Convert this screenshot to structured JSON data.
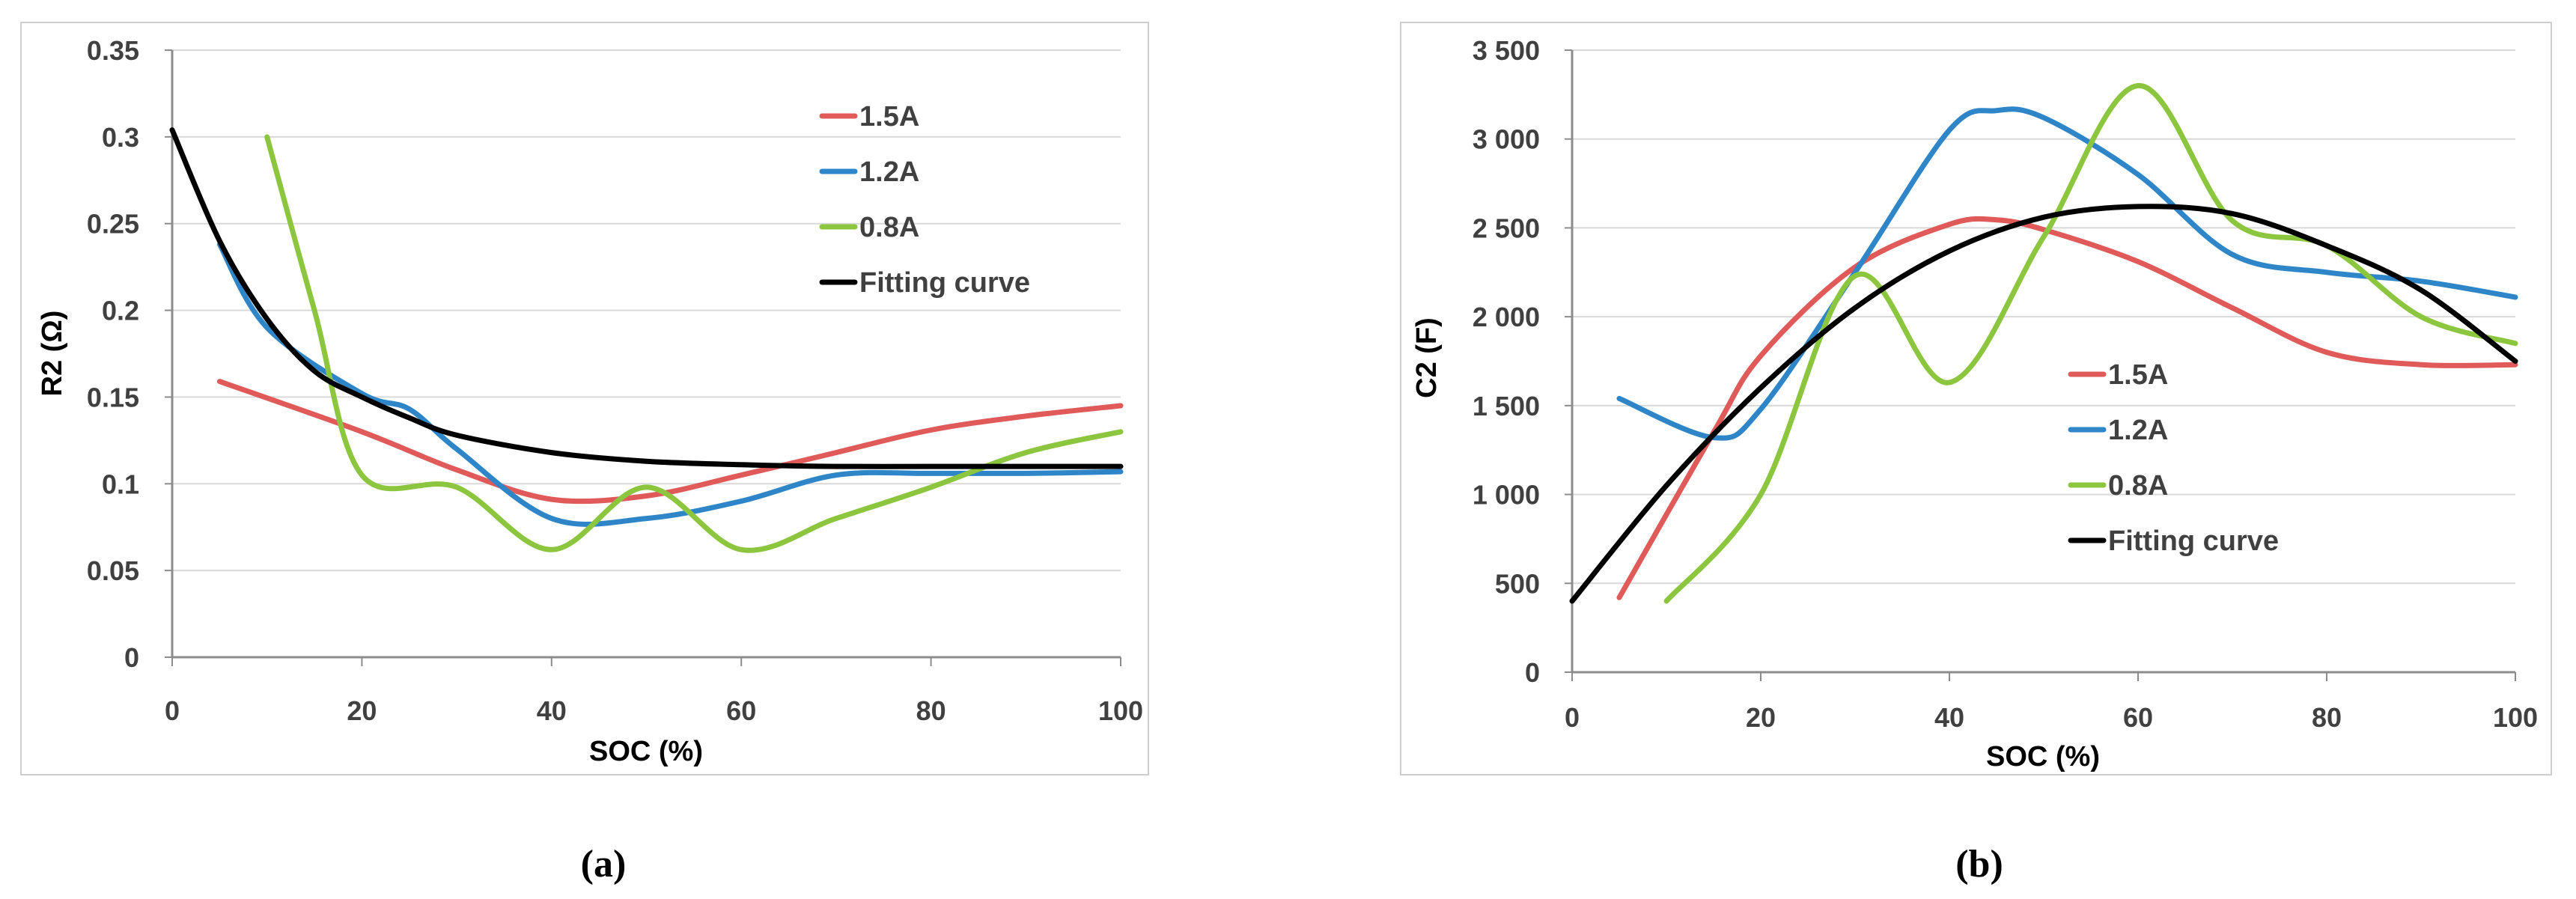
{
  "chart_data": [
    {
      "type": "line",
      "panel_label": "(a)",
      "xlabel": "SOC (%)",
      "ylabel": "R2 (Ω)",
      "xlim": [
        0,
        100
      ],
      "ylim": [
        0,
        0.35
      ],
      "x_ticks": [
        0,
        20,
        40,
        60,
        80,
        100
      ],
      "x_tick_labels": [
        "0",
        "20",
        "40",
        "60",
        "80",
        "100"
      ],
      "y_ticks": [
        0,
        0.05,
        0.1,
        0.15,
        0.2,
        0.25,
        0.3,
        0.35
      ],
      "y_tick_labels": [
        "0",
        "0.05",
        "0.1",
        "0.15",
        "0.2",
        "0.25",
        "0.3",
        "0.35"
      ],
      "grid": "horizontal",
      "legend_position": "top-right",
      "series": [
        {
          "name": "1.5A",
          "color": "#e05a5a",
          "x": [
            5,
            20,
            30,
            40,
            50,
            60,
            70,
            80,
            90,
            100
          ],
          "y": [
            0.159,
            0.13,
            0.108,
            0.091,
            0.093,
            0.105,
            0.118,
            0.131,
            0.139,
            0.145
          ]
        },
        {
          "name": "1.2A",
          "color": "#2e86c8",
          "x": [
            5,
            10,
            20,
            25,
            30,
            40,
            50,
            60,
            70,
            80,
            90,
            100
          ],
          "y": [
            0.238,
            0.19,
            0.152,
            0.143,
            0.12,
            0.08,
            0.08,
            0.09,
            0.105,
            0.106,
            0.106,
            0.107
          ]
        },
        {
          "name": "0.8A",
          "color": "#8cc63f",
          "x": [
            10,
            15,
            20,
            30,
            40,
            50,
            60,
            70,
            80,
            90,
            100
          ],
          "y": [
            0.3,
            0.2,
            0.105,
            0.098,
            0.062,
            0.098,
            0.062,
            0.08,
            0.098,
            0.118,
            0.13
          ]
        },
        {
          "name": "Fitting curve",
          "color": "#000000",
          "x": [
            0,
            5,
            10,
            15,
            20,
            25,
            30,
            40,
            50,
            60,
            70,
            80,
            90,
            100
          ],
          "y": [
            0.304,
            0.24,
            0.195,
            0.165,
            0.15,
            0.138,
            0.128,
            0.118,
            0.113,
            0.111,
            0.11,
            0.11,
            0.11,
            0.11
          ]
        }
      ]
    },
    {
      "type": "line",
      "panel_label": "(b)",
      "xlabel": "SOC (%)",
      "ylabel": "C2 (F)",
      "xlim": [
        0,
        100
      ],
      "ylim": [
        0,
        3500
      ],
      "x_ticks": [
        0,
        20,
        40,
        60,
        80,
        100
      ],
      "x_tick_labels": [
        "0",
        "20",
        "40",
        "60",
        "80",
        "100"
      ],
      "y_ticks": [
        0,
        500,
        1000,
        1500,
        2000,
        2500,
        3000,
        3500
      ],
      "y_tick_labels": [
        "0",
        "500",
        "1 000",
        "1 500",
        "2 000",
        "2 500",
        "3 000",
        "3 500"
      ],
      "grid": "horizontal",
      "legend_position": "center",
      "series": [
        {
          "name": "1.5A",
          "color": "#e05a5a",
          "x": [
            5,
            15,
            20,
            30,
            40,
            45,
            50,
            60,
            70,
            80,
            90,
            100
          ],
          "y": [
            420,
            1350,
            1780,
            2280,
            2520,
            2545,
            2490,
            2310,
            2050,
            1800,
            1730,
            1730
          ]
        },
        {
          "name": "1.2A",
          "color": "#2e86c8",
          "x": [
            5,
            15,
            20,
            30,
            40,
            45,
            50,
            60,
            70,
            80,
            90,
            100
          ],
          "y": [
            1540,
            1320,
            1480,
            2250,
            3050,
            3160,
            3120,
            2800,
            2350,
            2250,
            2200,
            2110
          ]
        },
        {
          "name": "0.8A",
          "color": "#8cc63f",
          "x": [
            10,
            20,
            30,
            40,
            50,
            60,
            70,
            80,
            90,
            100
          ],
          "y": [
            400,
            1000,
            2230,
            1630,
            2450,
            3300,
            2540,
            2400,
            2000,
            1850
          ]
        },
        {
          "name": "Fitting curve",
          "color": "#000000",
          "x": [
            0,
            10,
            20,
            30,
            40,
            50,
            60,
            70,
            80,
            90,
            100
          ],
          "y": [
            400,
            1050,
            1600,
            2050,
            2370,
            2560,
            2620,
            2580,
            2400,
            2150,
            1750
          ]
        }
      ]
    }
  ]
}
